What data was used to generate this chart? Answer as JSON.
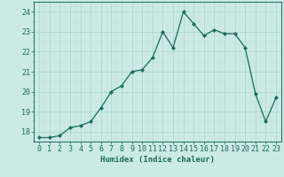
{
  "x": [
    0,
    1,
    2,
    3,
    4,
    5,
    6,
    7,
    8,
    9,
    10,
    11,
    12,
    13,
    14,
    15,
    16,
    17,
    18,
    19,
    20,
    21,
    22,
    23
  ],
  "y": [
    17.7,
    17.7,
    17.8,
    18.2,
    18.3,
    18.5,
    19.2,
    20.0,
    20.3,
    21.0,
    21.1,
    21.7,
    23.0,
    22.2,
    24.0,
    23.4,
    22.8,
    23.1,
    22.9,
    22.9,
    22.2,
    19.9,
    18.5,
    19.7
  ],
  "line_color": "#1a6b5a",
  "marker": "D",
  "marker_size": 2.2,
  "bg_color": "#cceae4",
  "grid_major_color": "#aad4cc",
  "grid_minor_color": "#bde0d8",
  "xlabel": "Humidex (Indice chaleur)",
  "ylim": [
    17.5,
    24.5
  ],
  "xlim": [
    -0.5,
    23.5
  ],
  "yticks": [
    18,
    19,
    20,
    21,
    22,
    23,
    24
  ],
  "xticks": [
    0,
    1,
    2,
    3,
    4,
    5,
    6,
    7,
    8,
    9,
    10,
    11,
    12,
    13,
    14,
    15,
    16,
    17,
    18,
    19,
    20,
    21,
    22,
    23
  ],
  "tick_color": "#1a6b5a",
  "xlabel_fontsize": 6.5,
  "tick_fontsize": 6.0,
  "linewidth": 0.9
}
